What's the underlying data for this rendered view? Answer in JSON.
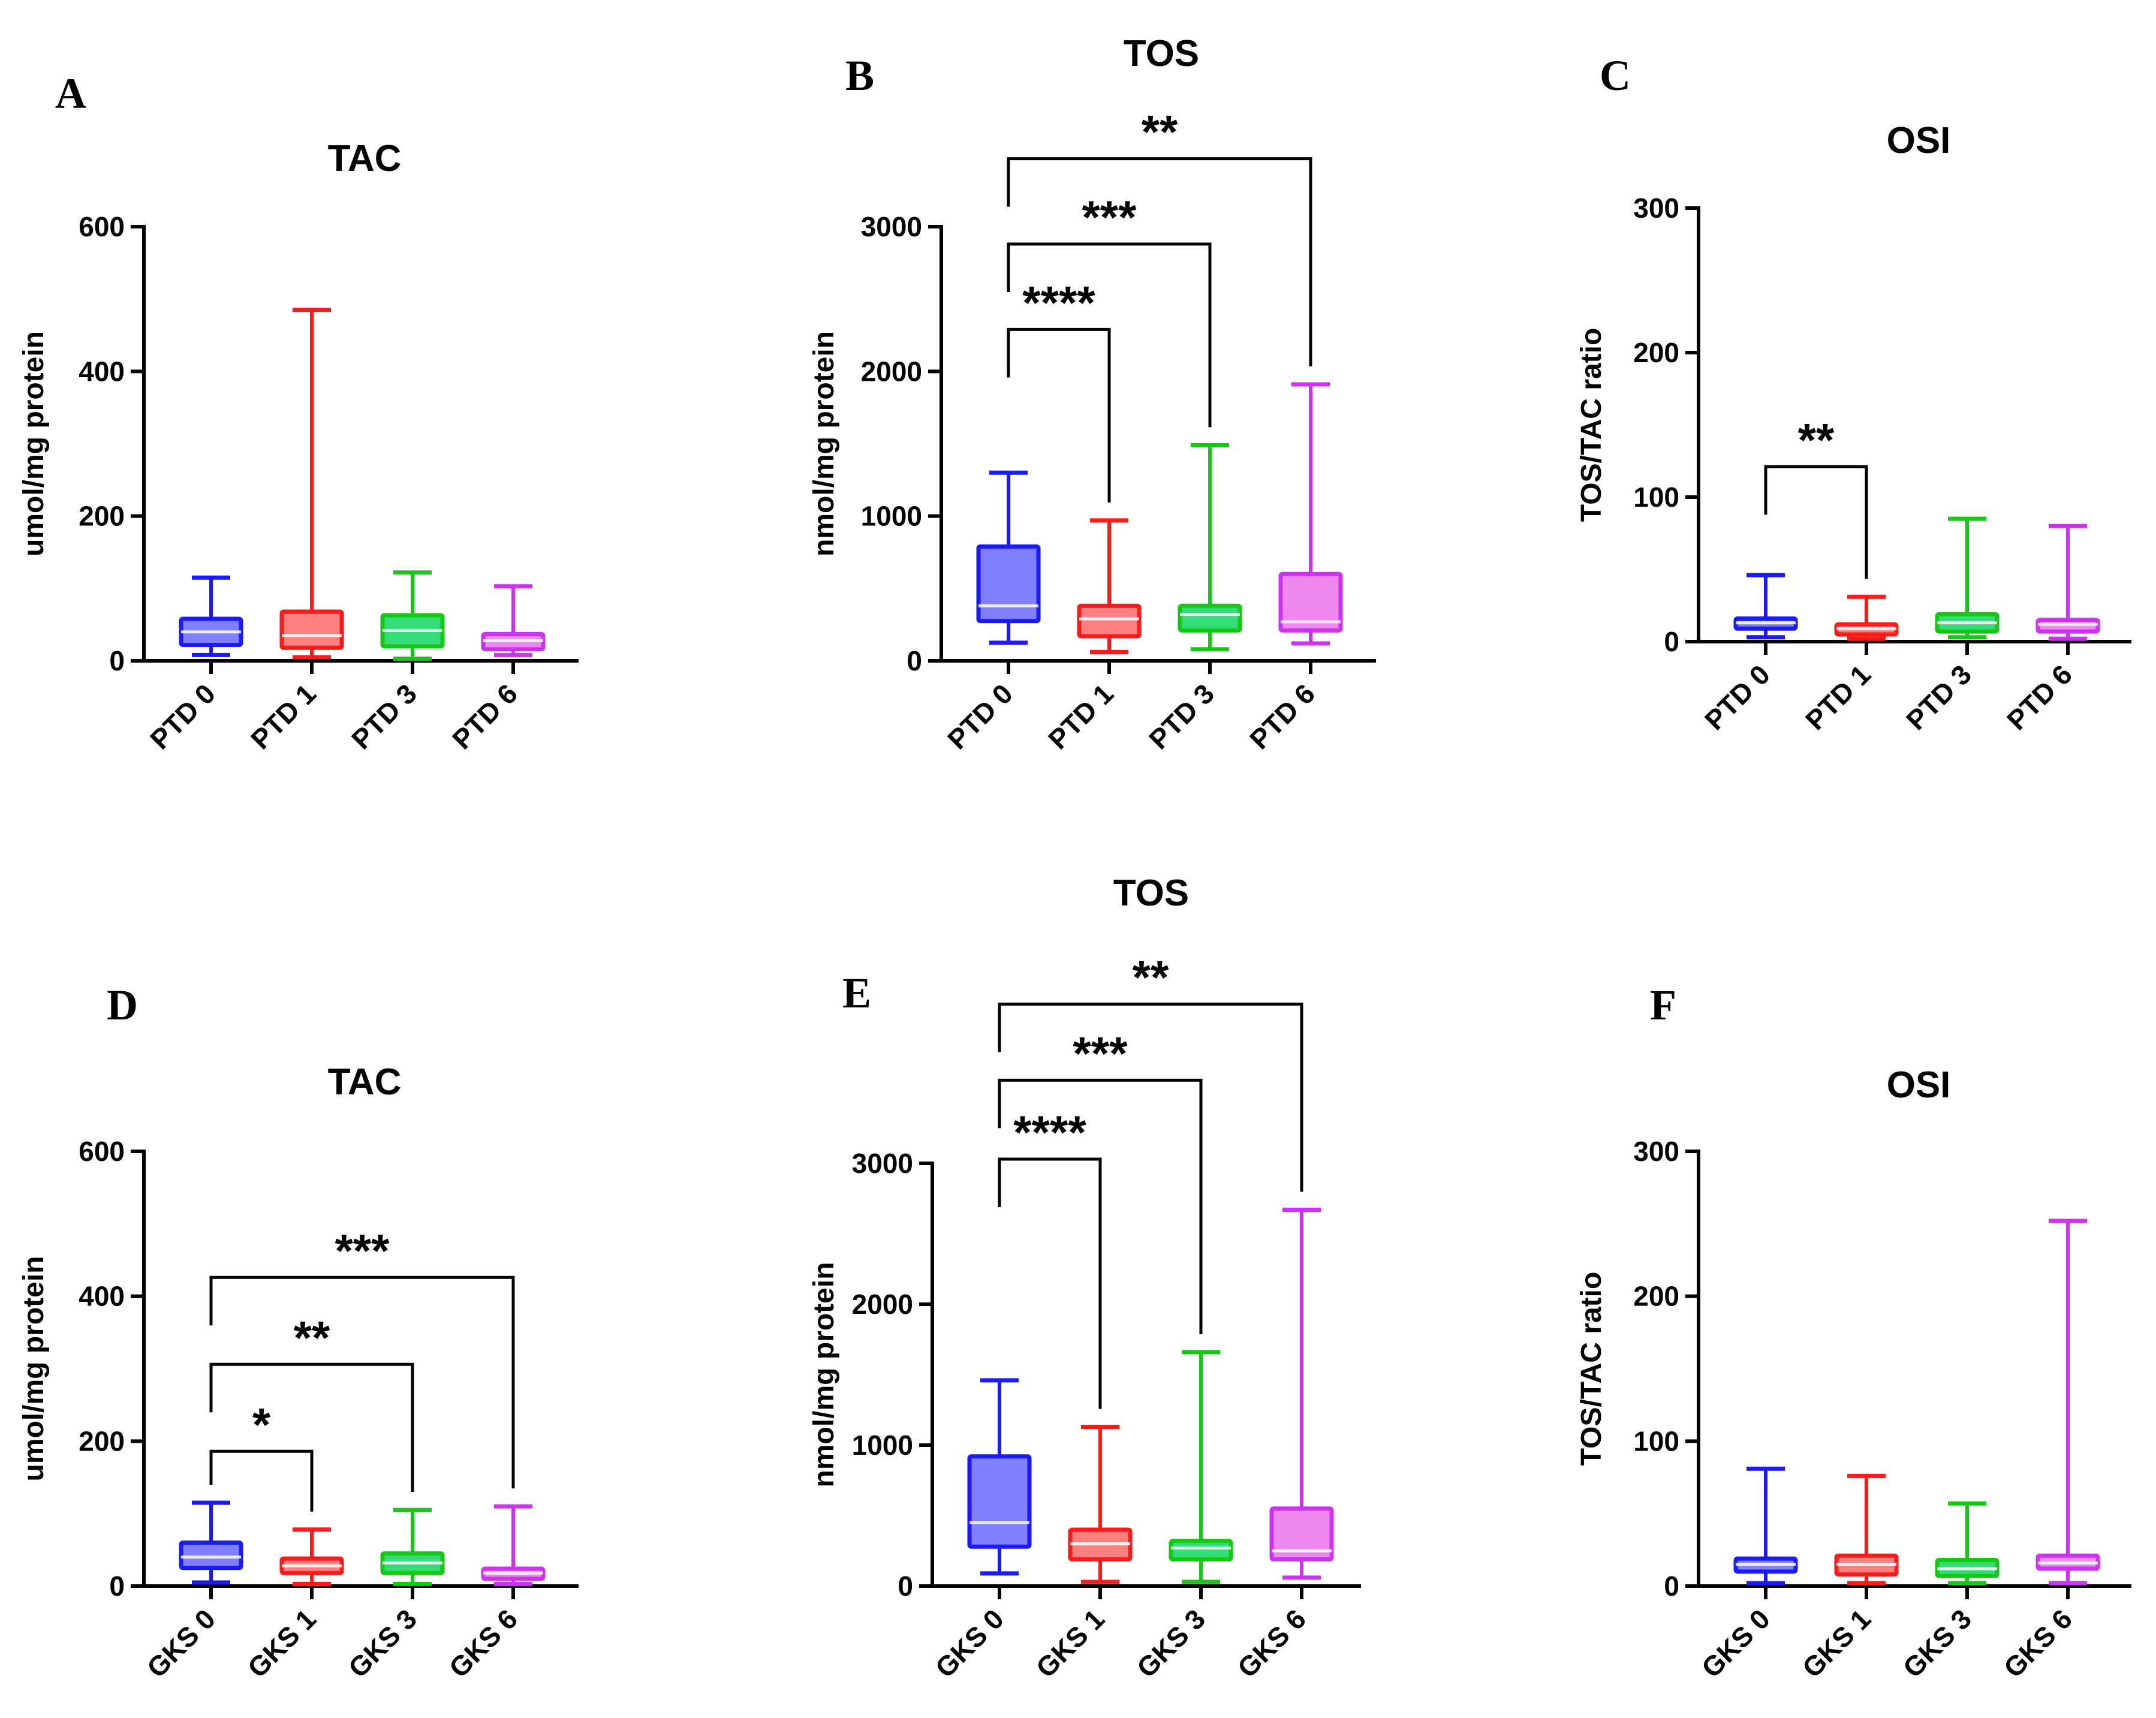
{
  "chart_data": [
    {
      "panel": "A",
      "type": "box",
      "title": "TAC",
      "ylabel": "umol/mg protein",
      "ylim": [
        0,
        600
      ],
      "yticks": [
        0,
        200,
        400,
        600
      ],
      "categories": [
        "PTD 0",
        "PTD 1",
        "PTD 3",
        "PTD 6"
      ],
      "colors": [
        "#1a1aff",
        "#ff1a1a",
        "#14c814",
        "#cc33ee"
      ],
      "fills": [
        "#8080ff",
        "#ff8080",
        "#33dd77",
        "#ee88ee"
      ],
      "boxes": [
        {
          "min": 8,
          "q1": 22,
          "median": 40,
          "q3": 58,
          "max": 115
        },
        {
          "min": 5,
          "q1": 18,
          "median": 35,
          "q3": 68,
          "max": 485
        },
        {
          "min": 3,
          "q1": 20,
          "median": 42,
          "q3": 63,
          "max": 122
        },
        {
          "min": 8,
          "q1": 16,
          "median": 28,
          "q3": 37,
          "max": 103
        }
      ],
      "significance": []
    },
    {
      "panel": "B",
      "type": "box",
      "title": "TOS",
      "ylabel": "nmol/mg protein",
      "ylim": [
        0,
        3000
      ],
      "yticks": [
        0,
        1000,
        2000,
        3000
      ],
      "categories": [
        "PTD 0",
        "PTD 1",
        "PTD 3",
        "PTD 6"
      ],
      "colors": [
        "#1a1aff",
        "#ff1a1a",
        "#14c814",
        "#cc33ee"
      ],
      "fills": [
        "#8080ff",
        "#ff8080",
        "#33dd77",
        "#ee88ee"
      ],
      "boxes": [
        {
          "min": 125,
          "q1": 275,
          "median": 380,
          "q3": 790,
          "max": 1300
        },
        {
          "min": 60,
          "q1": 170,
          "median": 290,
          "q3": 380,
          "max": 970
        },
        {
          "min": 80,
          "q1": 210,
          "median": 320,
          "q3": 380,
          "max": 1490
        },
        {
          "min": 120,
          "q1": 210,
          "median": 270,
          "q3": 600,
          "max": 1910
        }
      ],
      "significance": [
        {
          "from": 0,
          "to": 1,
          "label": "****",
          "level": 2290
        },
        {
          "from": 0,
          "to": 2,
          "label": "***",
          "level": 2880
        },
        {
          "from": 0,
          "to": 3,
          "label": "**",
          "level": 3470
        }
      ]
    },
    {
      "panel": "C",
      "type": "box",
      "title": "OSI",
      "ylabel": "TOS/TAC ratio",
      "ylim": [
        0,
        300
      ],
      "yticks": [
        0,
        100,
        200,
        300
      ],
      "categories": [
        "PTD 0",
        "PTD 1",
        "PTD 3",
        "PTD 6"
      ],
      "colors": [
        "#1a1aff",
        "#ff1a1a",
        "#14c814",
        "#cc33ee"
      ],
      "fills": [
        "#8080ff",
        "#ff8080",
        "#33dd77",
        "#ee88ee"
      ],
      "boxes": [
        {
          "min": 3,
          "q1": 9,
          "median": 13,
          "q3": 16,
          "max": 46
        },
        {
          "min": 2,
          "q1": 5,
          "median": 9,
          "q3": 12,
          "max": 31
        },
        {
          "min": 3,
          "q1": 7,
          "median": 13,
          "q3": 19,
          "max": 85
        },
        {
          "min": 2,
          "q1": 7,
          "median": 12,
          "q3": 15,
          "max": 80
        }
      ],
      "significance": [
        {
          "from": 0,
          "to": 1,
          "label": "**",
          "level": 121
        }
      ]
    },
    {
      "panel": "D",
      "type": "box",
      "title": "TAC",
      "ylabel": "umol/mg protein",
      "ylim": [
        0,
        600
      ],
      "yticks": [
        0,
        200,
        400,
        600
      ],
      "categories": [
        "GKS 0",
        "GKS 1",
        "GKS 3",
        "GKS 6"
      ],
      "colors": [
        "#1a1aff",
        "#ff1a1a",
        "#14c814",
        "#cc33ee"
      ],
      "fills": [
        "#8080ff",
        "#ff8080",
        "#33dd77",
        "#ee88ee"
      ],
      "boxes": [
        {
          "min": 5,
          "q1": 25,
          "median": 40,
          "q3": 60,
          "max": 115
        },
        {
          "min": 3,
          "q1": 18,
          "median": 28,
          "q3": 38,
          "max": 78
        },
        {
          "min": 3,
          "q1": 18,
          "median": 32,
          "q3": 45,
          "max": 105
        },
        {
          "min": 3,
          "q1": 10,
          "median": 18,
          "q3": 24,
          "max": 110
        }
      ],
      "significance": [
        {
          "from": 0,
          "to": 1,
          "label": "*",
          "level": 186
        },
        {
          "from": 0,
          "to": 2,
          "label": "**",
          "level": 306
        },
        {
          "from": 0,
          "to": 3,
          "label": "***",
          "level": 426
        }
      ]
    },
    {
      "panel": "E",
      "type": "box",
      "title": "TOS",
      "ylabel": "nmol/mg protein",
      "ylim": [
        0,
        3000
      ],
      "yticks": [
        0,
        1000,
        2000,
        3000
      ],
      "categories": [
        "GKS 0",
        "GKS 1",
        "GKS 3",
        "GKS 6"
      ],
      "colors": [
        "#1a1aff",
        "#ff1a1a",
        "#14c814",
        "#cc33ee"
      ],
      "fills": [
        "#8080ff",
        "#ff8080",
        "#33dd77",
        "#ee88ee"
      ],
      "boxes": [
        {
          "min": 90,
          "q1": 280,
          "median": 450,
          "q3": 920,
          "max": 1460
        },
        {
          "min": 30,
          "q1": 190,
          "median": 300,
          "q3": 400,
          "max": 1130
        },
        {
          "min": 30,
          "q1": 190,
          "median": 270,
          "q3": 320,
          "max": 1660
        },
        {
          "min": 60,
          "q1": 190,
          "median": 250,
          "q3": 550,
          "max": 2670
        }
      ],
      "significance": [
        {
          "from": 0,
          "to": 1,
          "label": "****",
          "level": 3030
        },
        {
          "from": 0,
          "to": 2,
          "label": "***",
          "level": 3590
        },
        {
          "from": 0,
          "to": 3,
          "label": "**",
          "level": 4130
        }
      ]
    },
    {
      "panel": "F",
      "type": "box",
      "title": "OSI",
      "ylabel": "TOS/TAC ratio",
      "ylim": [
        0,
        300
      ],
      "yticks": [
        0,
        100,
        200,
        300
      ],
      "categories": [
        "GKS 0",
        "GKS 1",
        "GKS 3",
        "GKS 6"
      ],
      "colors": [
        "#1a1aff",
        "#ff1a1a",
        "#14c814",
        "#cc33ee"
      ],
      "fills": [
        "#8080ff",
        "#ff8080",
        "#33dd77",
        "#ee88ee"
      ],
      "boxes": [
        {
          "min": 2,
          "q1": 10,
          "median": 15,
          "q3": 19,
          "max": 81
        },
        {
          "min": 2,
          "q1": 8,
          "median": 15,
          "q3": 21,
          "max": 76
        },
        {
          "min": 2,
          "q1": 7,
          "median": 12,
          "q3": 18,
          "max": 57
        },
        {
          "min": 2,
          "q1": 12,
          "median": 16,
          "q3": 21,
          "max": 252
        }
      ],
      "significance": []
    }
  ]
}
